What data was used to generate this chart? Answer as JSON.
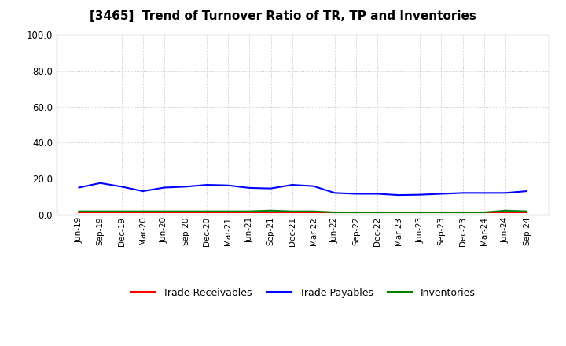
{
  "title": "[3465]  Trend of Turnover Ratio of TR, TP and Inventories",
  "x_labels": [
    "Jun-19",
    "Sep-19",
    "Dec-19",
    "Mar-20",
    "Jun-20",
    "Sep-20",
    "Dec-20",
    "Mar-21",
    "Jun-21",
    "Sep-21",
    "Dec-21",
    "Mar-22",
    "Jun-22",
    "Sep-22",
    "Dec-22",
    "Mar-23",
    "Jun-23",
    "Sep-23",
    "Dec-23",
    "Mar-24",
    "Jun-24",
    "Sep-24"
  ],
  "trade_receivables": [
    1.2,
    1.2,
    1.2,
    1.2,
    1.2,
    1.2,
    1.2,
    1.2,
    1.2,
    1.2,
    1.2,
    1.2,
    1.2,
    1.2,
    1.2,
    1.2,
    1.2,
    1.2,
    1.2,
    1.2,
    1.2,
    1.2
  ],
  "trade_payables": [
    15.0,
    17.5,
    15.5,
    13.0,
    15.0,
    15.5,
    16.5,
    16.2,
    14.8,
    14.5,
    16.5,
    15.8,
    12.0,
    11.5,
    11.5,
    10.8,
    11.0,
    11.5,
    12.0,
    12.0,
    12.0,
    13.0
  ],
  "inventories": [
    1.8,
    1.8,
    1.8,
    1.8,
    1.8,
    1.8,
    1.8,
    1.8,
    1.8,
    2.2,
    1.8,
    1.8,
    1.2,
    1.2,
    1.2,
    1.2,
    1.2,
    1.2,
    1.2,
    1.2,
    2.2,
    1.8
  ],
  "tr_color": "#ff0000",
  "tp_color": "#0000ff",
  "inv_color": "#008000",
  "ylim": [
    0,
    100
  ],
  "yticks": [
    0.0,
    20.0,
    40.0,
    60.0,
    80.0,
    100.0
  ],
  "background_color": "#ffffff",
  "grid_color": "#bbbbbb",
  "title_fontsize": 11,
  "tick_fontsize": 7.5,
  "legend_labels": [
    "Trade Receivables",
    "Trade Payables",
    "Inventories"
  ],
  "legend_fontsize": 9,
  "line_width": 1.5
}
